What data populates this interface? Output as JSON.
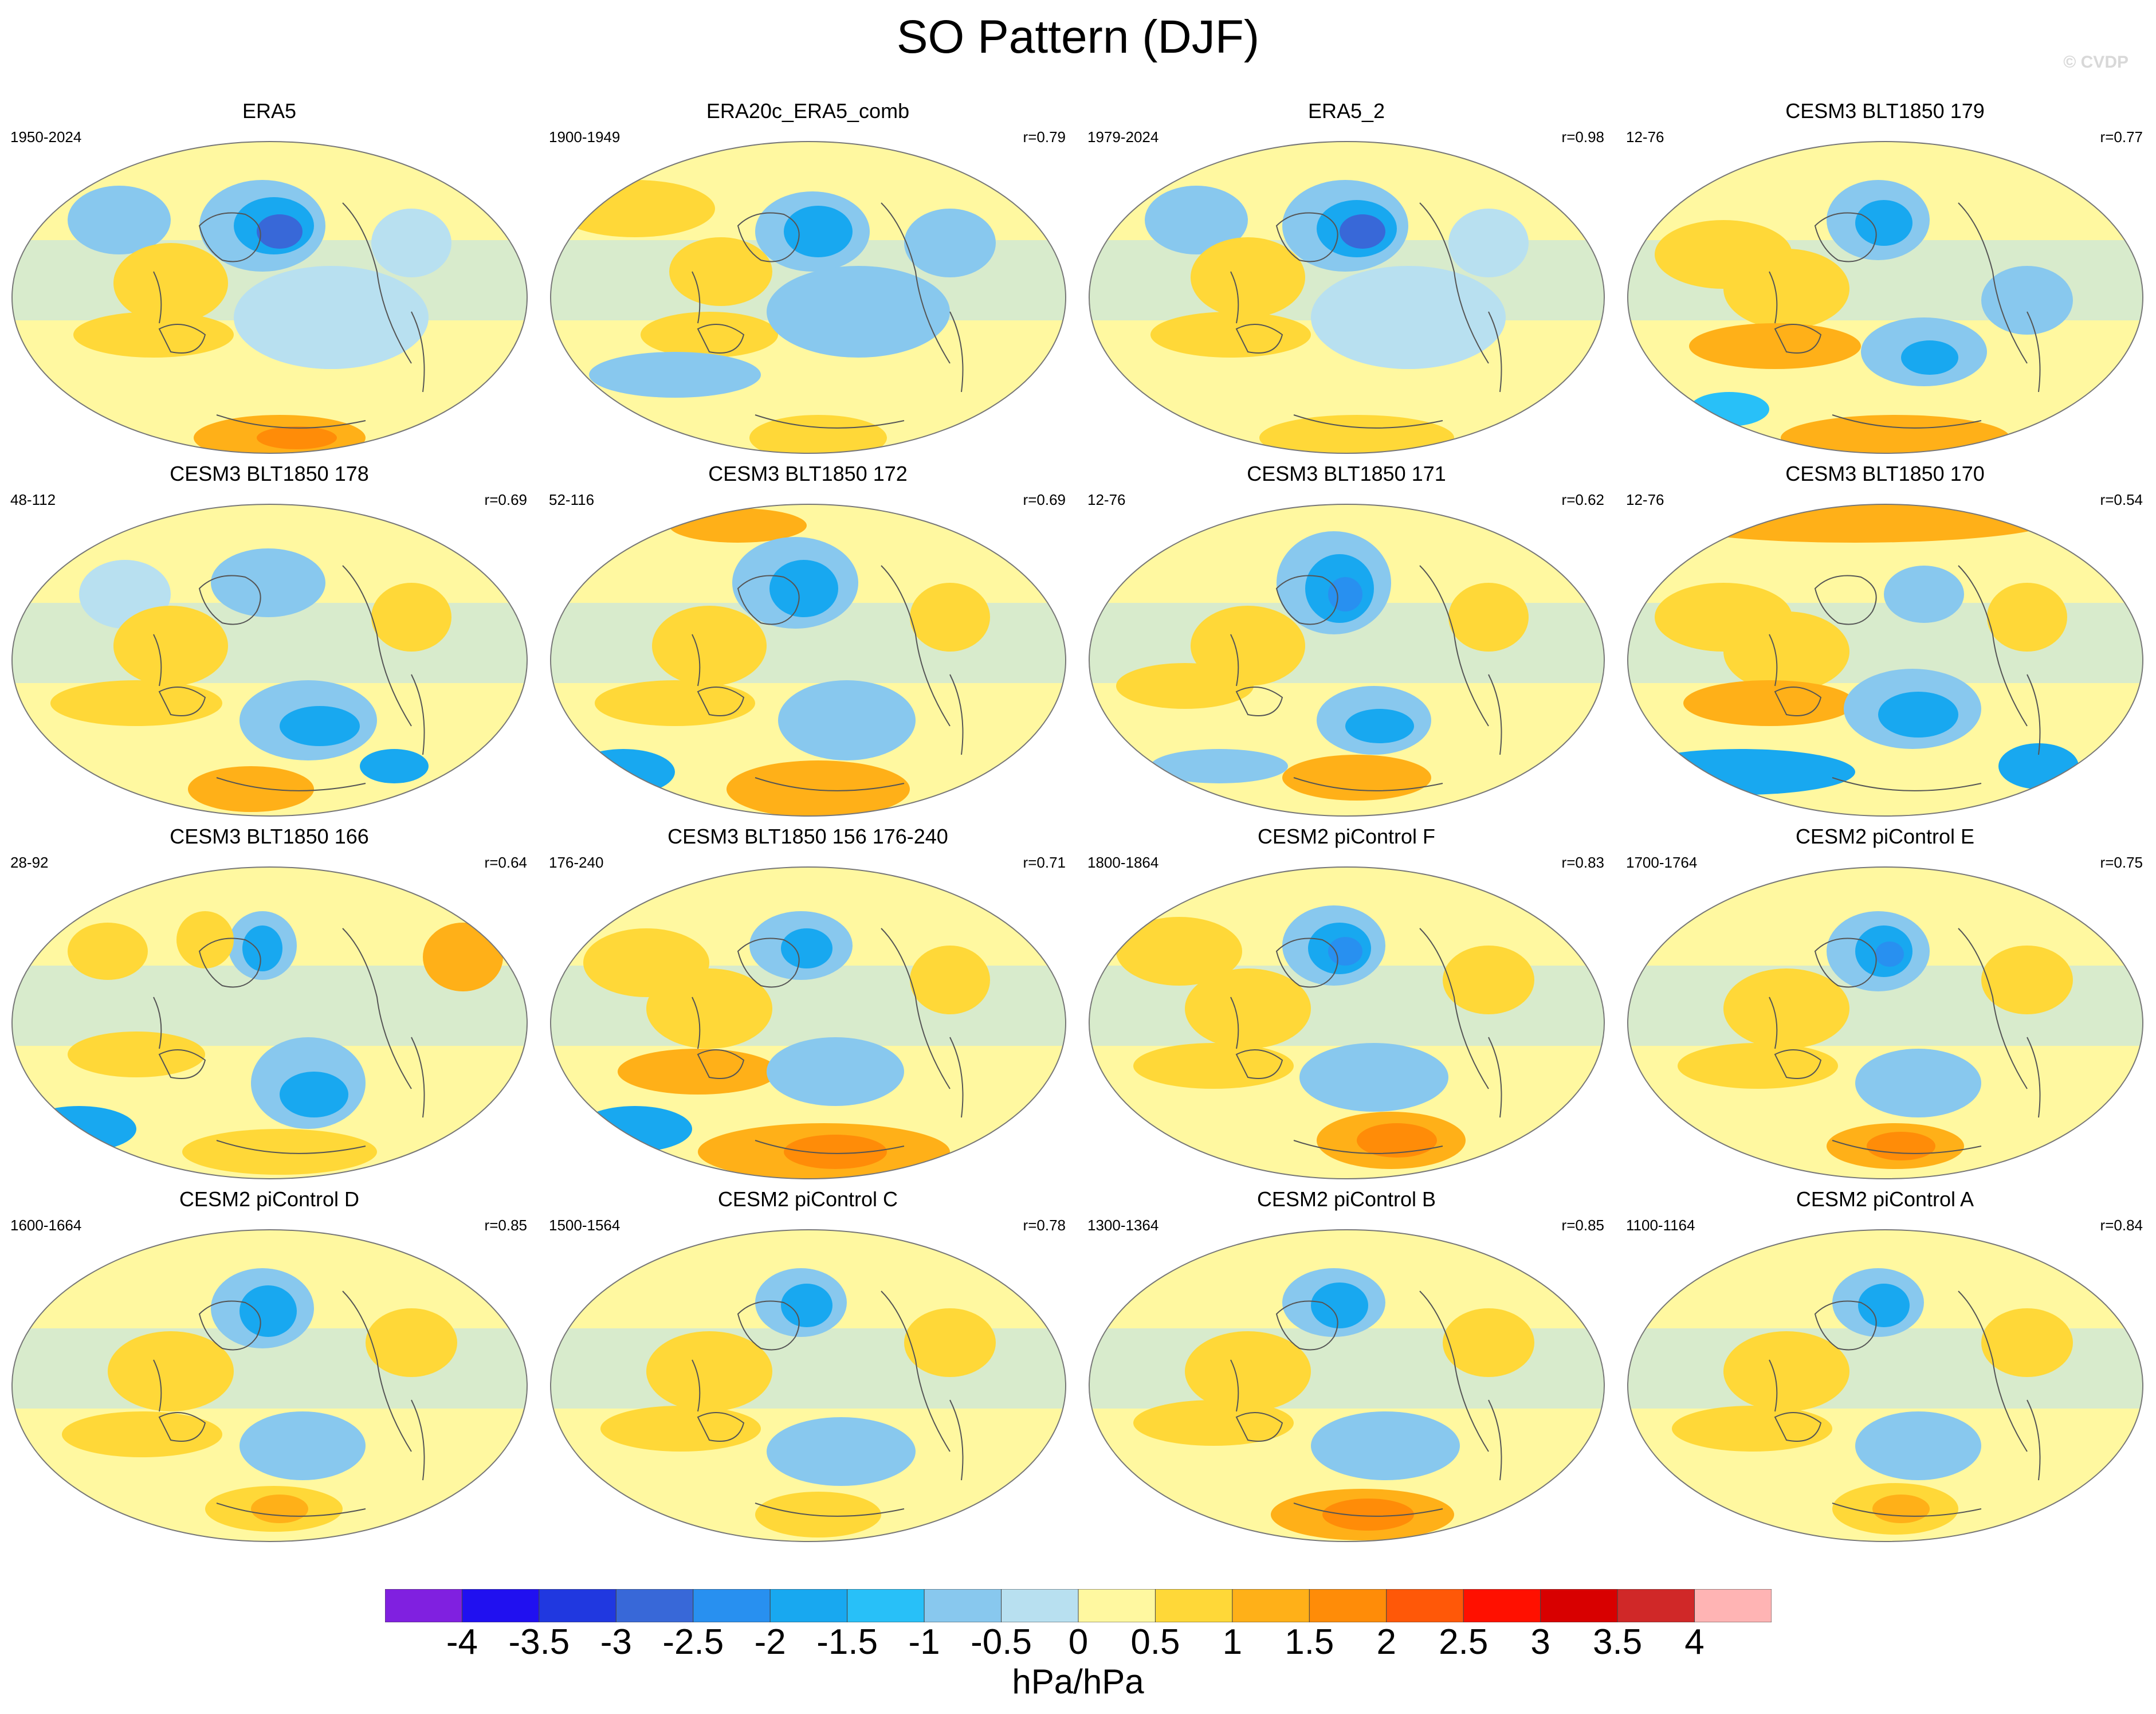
{
  "title": "SO Pattern (DJF)",
  "watermark": "© CVDP",
  "units": "hPa/hPa",
  "colorbar": {
    "ticks": [
      "-4",
      "-3.5",
      "-3",
      "-2.5",
      "-2",
      "-1.5",
      "-1",
      "-0.5",
      "0",
      "0.5",
      "1",
      "1.5",
      "2",
      "2.5",
      "3",
      "3.5",
      "4"
    ],
    "colors": [
      "#8020e0",
      "#2010f0",
      "#2038e0",
      "#3868d8",
      "#2890f0",
      "#18a8f0",
      "#28c0f8",
      "#88c8ee",
      "#b8e0f0",
      "#fff8a0",
      "#ffd838",
      "#ffb018",
      "#ff8c08",
      "#ff5808",
      "#ff1000",
      "#d80000",
      "#d02828",
      "#ffb4b4"
    ]
  },
  "panels": [
    {
      "title": "ERA5",
      "period": "1950-2024",
      "corr": ""
    },
    {
      "title": "ERA20c_ERA5_comb",
      "period": "1900-1949",
      "corr": "r=0.79"
    },
    {
      "title": "ERA5_2",
      "period": "1979-2024",
      "corr": "r=0.98"
    },
    {
      "title": "CESM3 BLT1850 179",
      "period": "12-76",
      "corr": "r=0.77"
    },
    {
      "title": "CESM3 BLT1850 178",
      "period": "48-112",
      "corr": "r=0.69"
    },
    {
      "title": "CESM3 BLT1850 172",
      "period": "52-116",
      "corr": "r=0.69"
    },
    {
      "title": "CESM3 BLT1850 171",
      "period": "12-76",
      "corr": "r=0.62"
    },
    {
      "title": "CESM3 BLT1850 170",
      "period": "12-76",
      "corr": "r=0.54"
    },
    {
      "title": "CESM3 BLT1850 166",
      "period": "28-92",
      "corr": "r=0.64"
    },
    {
      "title": "CESM3 BLT1850 156 176-240",
      "period": "176-240",
      "corr": "r=0.71"
    },
    {
      "title": "CESM2 piControl F",
      "period": "1800-1864",
      "corr": "r=0.83"
    },
    {
      "title": "CESM2 piControl E",
      "period": "1700-1764",
      "corr": "r=0.75"
    },
    {
      "title": "CESM2 piControl D",
      "period": "1600-1664",
      "corr": "r=0.85"
    },
    {
      "title": "CESM2 piControl C",
      "period": "1500-1564",
      "corr": "r=0.78"
    },
    {
      "title": "CESM2 piControl B",
      "period": "1300-1364",
      "corr": "r=0.85"
    },
    {
      "title": "CESM2 piControl A",
      "period": "1100-1164",
      "corr": "r=0.84"
    }
  ]
}
